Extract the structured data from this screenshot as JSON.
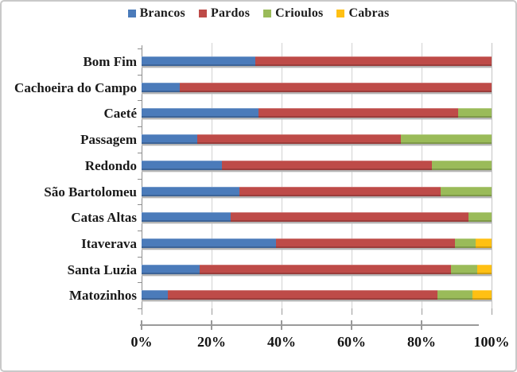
{
  "chart_data": {
    "type": "bar",
    "stacked": true,
    "orientation": "horizontal",
    "unit": "percent",
    "title": "",
    "xlabel": "",
    "ylabel": "",
    "xlim": [
      0,
      100
    ],
    "x_ticks": [
      "0%",
      "20%",
      "40%",
      "60%",
      "80%",
      "100%"
    ],
    "grid": "vertical",
    "legend_position": "top",
    "categories": [
      "Bom Fim",
      "Cachoeira do Campo",
      "Caeté",
      "Passagem",
      "Redondo",
      "São Bartolomeu",
      "Catas Altas",
      "Itaverava",
      "Santa Luzia",
      "Matozinhos"
    ],
    "series": [
      {
        "name": "Brancos",
        "color": "#4b7bba",
        "values": [
          32.5,
          11,
          33.5,
          16,
          23,
          28,
          25.5,
          38.5,
          16.5,
          7.5
        ]
      },
      {
        "name": "Pardos",
        "color": "#be4b48",
        "values": [
          67.5,
          89,
          57,
          58,
          60,
          57.5,
          68,
          51,
          72,
          77
        ]
      },
      {
        "name": "Crioulos",
        "color": "#9abb59",
        "values": [
          0,
          0,
          9.5,
          26,
          17,
          14.5,
          6.5,
          6,
          7.5,
          10
        ]
      },
      {
        "name": "Cabras",
        "color": "#ffc013",
        "values": [
          0,
          0,
          0,
          0,
          0,
          0,
          0,
          4.5,
          4,
          5.5
        ]
      }
    ]
  },
  "colors": {
    "gridline": "#d2d2d2",
    "axis": "#9a9a9a",
    "text": "#1a1a1a",
    "frame_border": "#c9c9c9"
  }
}
